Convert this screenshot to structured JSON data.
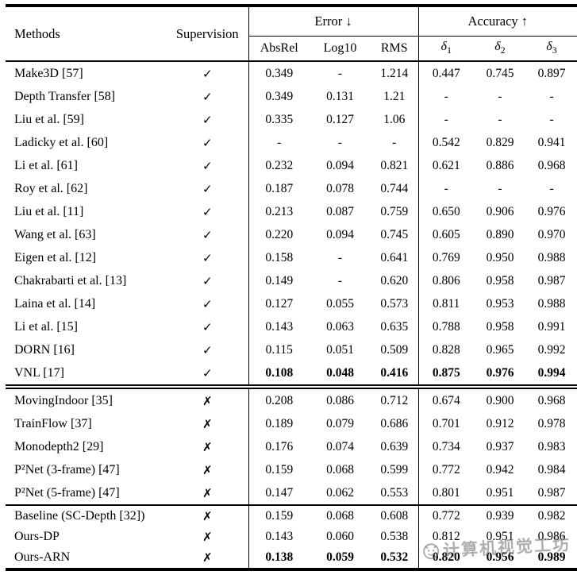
{
  "table": {
    "headers": {
      "methods": "Methods",
      "supervision": "Supervision",
      "error_group": "Error ↓",
      "accuracy_group": "Accuracy ↑",
      "error_cols": [
        "AbsRel",
        "Log10",
        "RMS"
      ],
      "accuracy_cols": [
        {
          "base": "δ",
          "sub": "1"
        },
        {
          "base": "δ",
          "sub": "2"
        },
        {
          "base": "δ",
          "sub": "3"
        }
      ]
    },
    "sections": [
      {
        "rows": [
          {
            "method": "Make3D [57]",
            "supervision": "✓",
            "values": [
              "0.349",
              "-",
              "1.214",
              "0.447",
              "0.745",
              "0.897"
            ],
            "bold": false
          },
          {
            "method": "Depth Transfer [58]",
            "supervision": "✓",
            "values": [
              "0.349",
              "0.131",
              "1.21",
              "-",
              "-",
              "-"
            ],
            "bold": false
          },
          {
            "method": "Liu et al. [59]",
            "supervision": "✓",
            "values": [
              "0.335",
              "0.127",
              "1.06",
              "-",
              "-",
              "-"
            ],
            "bold": false
          },
          {
            "method": "Ladicky et al. [60]",
            "supervision": "✓",
            "values": [
              "-",
              "-",
              "-",
              "0.542",
              "0.829",
              "0.941"
            ],
            "bold": false
          },
          {
            "method": "Li et al. [61]",
            "supervision": "✓",
            "values": [
              "0.232",
              "0.094",
              "0.821",
              "0.621",
              "0.886",
              "0.968"
            ],
            "bold": false
          },
          {
            "method": "Roy et al. [62]",
            "supervision": "✓",
            "values": [
              "0.187",
              "0.078",
              "0.744",
              "-",
              "-",
              "-"
            ],
            "bold": false
          },
          {
            "method": "Liu et al. [11]",
            "supervision": "✓",
            "values": [
              "0.213",
              "0.087",
              "0.759",
              "0.650",
              "0.906",
              "0.976"
            ],
            "bold": false
          },
          {
            "method": "Wang et al. [63]",
            "supervision": "✓",
            "values": [
              "0.220",
              "0.094",
              "0.745",
              "0.605",
              "0.890",
              "0.970"
            ],
            "bold": false
          },
          {
            "method": "Eigen et al. [12]",
            "supervision": "✓",
            "values": [
              "0.158",
              "-",
              "0.641",
              "0.769",
              "0.950",
              "0.988"
            ],
            "bold": false
          },
          {
            "method": "Chakrabarti et al. [13]",
            "supervision": "✓",
            "values": [
              "0.149",
              "-",
              "0.620",
              "0.806",
              "0.958",
              "0.987"
            ],
            "bold": false
          },
          {
            "method": "Laina et al. [14]",
            "supervision": "✓",
            "values": [
              "0.127",
              "0.055",
              "0.573",
              "0.811",
              "0.953",
              "0.988"
            ],
            "bold": false
          },
          {
            "method": "Li et al. [15]",
            "supervision": "✓",
            "values": [
              "0.143",
              "0.063",
              "0.635",
              "0.788",
              "0.958",
              "0.991"
            ],
            "bold": false
          },
          {
            "method": "DORN [16]",
            "supervision": "✓",
            "values": [
              "0.115",
              "0.051",
              "0.509",
              "0.828",
              "0.965",
              "0.992"
            ],
            "bold": false
          },
          {
            "method": "VNL [17]",
            "supervision": "✓",
            "values": [
              "0.108",
              "0.048",
              "0.416",
              "0.875",
              "0.976",
              "0.994"
            ],
            "bold": true
          }
        ]
      },
      {
        "rows": [
          {
            "method": "MovingIndoor [35]",
            "supervision": "✗",
            "values": [
              "0.208",
              "0.086",
              "0.712",
              "0.674",
              "0.900",
              "0.968"
            ],
            "bold": false
          },
          {
            "method": "TrainFlow [37]",
            "supervision": "✗",
            "values": [
              "0.189",
              "0.079",
              "0.686",
              "0.701",
              "0.912",
              "0.978"
            ],
            "bold": false
          },
          {
            "method": "Monodepth2 [29]",
            "supervision": "✗",
            "values": [
              "0.176",
              "0.074",
              "0.639",
              "0.734",
              "0.937",
              "0.983"
            ],
            "bold": false
          },
          {
            "method": "P²Net (3-frame) [47]",
            "supervision": "✗",
            "values": [
              "0.159",
              "0.068",
              "0.599",
              "0.772",
              "0.942",
              "0.984"
            ],
            "bold": false
          },
          {
            "method": "P²Net (5-frame) [47]",
            "supervision": "✗",
            "values": [
              "0.147",
              "0.062",
              "0.553",
              "0.801",
              "0.951",
              "0.987"
            ],
            "bold": false
          }
        ]
      },
      {
        "rows": [
          {
            "method": "Baseline (SC-Depth [32])",
            "supervision": "✗",
            "values": [
              "0.159",
              "0.068",
              "0.608",
              "0.772",
              "0.939",
              "0.982"
            ],
            "bold": false
          },
          {
            "method": "Ours-DP",
            "supervision": "✗",
            "values": [
              "0.143",
              "0.060",
              "0.538",
              "0.812",
              "0.951",
              "0.986"
            ],
            "bold": false
          },
          {
            "method": "Ours-ARN",
            "supervision": "✗",
            "values": [
              "0.138",
              "0.059",
              "0.532",
              "0.820",
              "0.956",
              "0.989"
            ],
            "bold": true
          }
        ]
      }
    ]
  },
  "watermark": {
    "text": "计算机视觉工坊"
  }
}
